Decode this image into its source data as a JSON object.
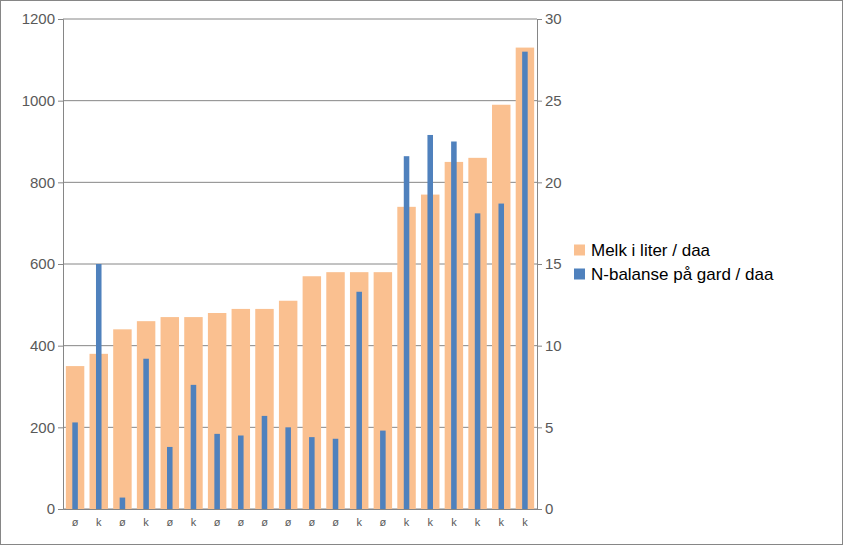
{
  "chart_data": {
    "type": "bar",
    "categories": [
      "ø",
      "k",
      "ø",
      "k",
      "ø",
      "k",
      "ø",
      "ø",
      "ø",
      "ø",
      "ø",
      "ø",
      "k",
      "ø",
      "k",
      "k",
      "k",
      "k",
      "k",
      "k"
    ],
    "series": [
      {
        "name": "Melk i liter / daa",
        "color": "#fac090",
        "axis": "y",
        "values": [
          350,
          380,
          440,
          460,
          470,
          470,
          480,
          490,
          490,
          510,
          570,
          580,
          580,
          580,
          740,
          770,
          850,
          860,
          990,
          1130
        ]
      },
      {
        "name": "N-balanse på gard / daa",
        "color": "#4f81bd",
        "axis": "y2",
        "values": [
          5.3,
          15,
          0.7,
          9.2,
          3.8,
          7.6,
          4.6,
          4.5,
          5.7,
          5.0,
          4.4,
          4.3,
          13.3,
          4.8,
          21.6,
          22.9,
          22.5,
          18.1,
          18.7,
          28
        ]
      }
    ],
    "ylim": [
      0,
      1200
    ],
    "yticks": [
      0,
      200,
      400,
      600,
      800,
      1000,
      1200
    ],
    "y2lim": [
      0,
      30
    ],
    "y2ticks": [
      0,
      5,
      10,
      15,
      20,
      25,
      30
    ],
    "grid": true,
    "legend": "right"
  }
}
